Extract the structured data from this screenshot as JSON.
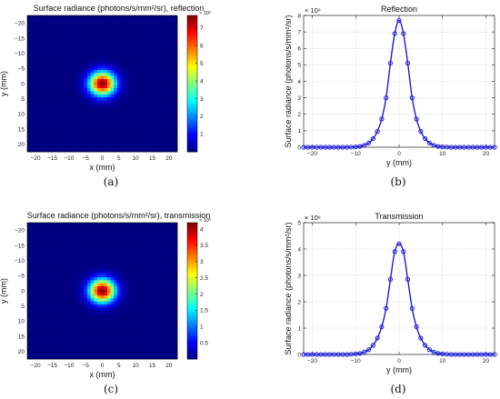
{
  "chart_data": [
    {
      "type": "heatmap",
      "title": "Surface radiance (photons/s/mm²/sr), reflection",
      "xlabel": "x (mm)",
      "ylabel": "y (mm)",
      "x_ticks": [
        "−20",
        "−15",
        "−10",
        "−5",
        "0",
        "5",
        "10",
        "15",
        "20"
      ],
      "y_ticks": [
        "−20",
        "−15",
        "−10",
        "−5",
        "0",
        "5",
        "10",
        "15",
        "20"
      ],
      "xlim": [
        -22.5,
        22.5
      ],
      "ylim": [
        -22.5,
        22.5
      ],
      "peak": 7.7,
      "sigma": 2.7,
      "colorbar": {
        "ticks": [
          "1",
          "2",
          "3",
          "4",
          "5",
          "6",
          "7"
        ],
        "max": 7.7,
        "exponent": "× 10⁶"
      },
      "caption": "(a)"
    },
    {
      "type": "line",
      "title": "Reflection",
      "xlabel": "y (mm)",
      "ylabel": "Surface radiance (photons/s/mm²/sr)",
      "xlim": [
        -22,
        22
      ],
      "ylim": [
        0,
        8
      ],
      "x_ticks": [
        "−20",
        "−10",
        "0",
        "10",
        "20"
      ],
      "y_ticks": [
        "0",
        "1",
        "2",
        "3",
        "4",
        "5",
        "6",
        "7",
        "8"
      ],
      "y_multiplier": "× 10⁶",
      "grid": true,
      "series": [
        {
          "x": [
            -22,
            -21,
            -20,
            -19,
            -18,
            -17,
            -16,
            -15,
            -14,
            -13,
            -12,
            -11,
            -10,
            -9,
            -8,
            -7,
            -6,
            -5,
            -4,
            -3,
            -2,
            -1,
            0,
            1,
            2,
            3,
            4,
            5,
            6,
            7,
            8,
            9,
            10,
            11,
            12,
            13,
            14,
            15,
            16,
            17,
            18,
            19,
            20,
            21,
            22
          ],
          "y": [
            0,
            0,
            0,
            0,
            0,
            0,
            0,
            0,
            0,
            0,
            0,
            0.01,
            0.02,
            0.05,
            0.12,
            0.26,
            0.52,
            0.96,
            1.71,
            3.0,
            5.1,
            6.9,
            7.7,
            6.9,
            5.1,
            3.0,
            1.71,
            0.96,
            0.52,
            0.26,
            0.12,
            0.05,
            0.02,
            0.01,
            0,
            0,
            0,
            0,
            0,
            0,
            0,
            0,
            0,
            0,
            0
          ]
        }
      ],
      "caption": "(b)"
    },
    {
      "type": "heatmap",
      "title": "Surface radiance (photons/s/mm²/sr), transmission",
      "xlabel": "x (mm)",
      "ylabel": "y (mm)",
      "x_ticks": [
        "−20",
        "−15",
        "−10",
        "−5",
        "0",
        "5",
        "10",
        "15",
        "20"
      ],
      "y_ticks": [
        "−20",
        "−15",
        "−10",
        "−5",
        "0",
        "5",
        "10",
        "15",
        "20"
      ],
      "xlim": [
        -22.5,
        22.5
      ],
      "ylim": [
        -22.5,
        22.5
      ],
      "peak": 4.2,
      "sigma": 2.7,
      "colorbar": {
        "ticks": [
          "0.5",
          "1",
          "1.5",
          "2",
          "2.5",
          "3",
          "3.5",
          "4"
        ],
        "max": 4.2,
        "exponent": "× 10⁶"
      },
      "caption": "(c)"
    },
    {
      "type": "line",
      "title": "Transmission",
      "xlabel": "y (mm)",
      "ylabel": "Surface radiance (photons/s/mm²/sr)",
      "xlim": [
        -22,
        22
      ],
      "ylim": [
        0,
        5
      ],
      "x_ticks": [
        "−20",
        "−10",
        "0",
        "10",
        "20"
      ],
      "y_ticks": [
        "0",
        "1",
        "2",
        "3",
        "4",
        "5"
      ],
      "y_multiplier": "× 10⁶",
      "grid": true,
      "series": [
        {
          "x": [
            -22,
            -21,
            -20,
            -19,
            -18,
            -17,
            -16,
            -15,
            -14,
            -13,
            -12,
            -11,
            -10,
            -9,
            -8,
            -7,
            -6,
            -5,
            -4,
            -3,
            -2,
            -1,
            0,
            1,
            2,
            3,
            4,
            5,
            6,
            7,
            8,
            9,
            10,
            11,
            12,
            13,
            14,
            15,
            16,
            17,
            18,
            19,
            20,
            21,
            22
          ],
          "y": [
            0,
            0,
            0,
            0,
            0,
            0,
            0,
            0,
            0,
            0,
            0,
            0.01,
            0.02,
            0.04,
            0.09,
            0.18,
            0.35,
            0.62,
            1.05,
            1.75,
            2.85,
            3.9,
            4.2,
            3.9,
            2.85,
            1.75,
            1.05,
            0.62,
            0.35,
            0.18,
            0.09,
            0.04,
            0.02,
            0.01,
            0,
            0,
            0,
            0,
            0,
            0,
            0,
            0,
            0,
            0,
            0
          ]
        }
      ],
      "caption": "(d)"
    }
  ],
  "colors": {
    "line": "#1c1cd6",
    "grid": "#c8c8c8"
  }
}
